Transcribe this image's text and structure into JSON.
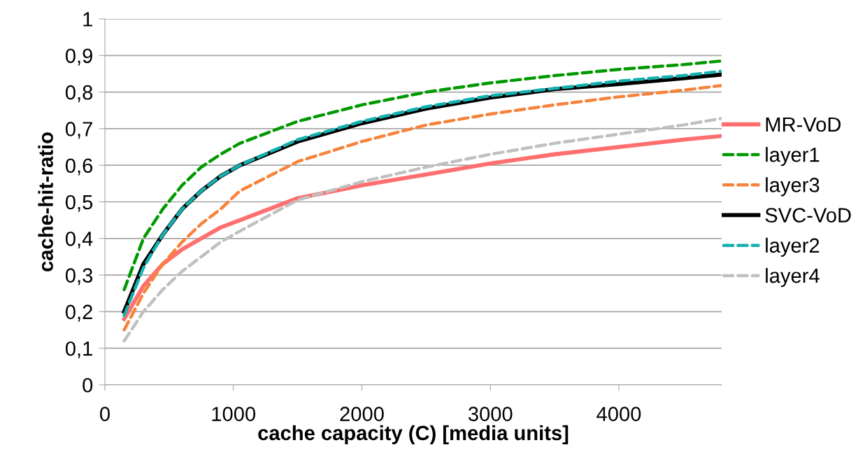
{
  "chart_data": {
    "type": "line",
    "xlabel": "cache capacity (C) [media units]",
    "ylabel": "cache-hit-ratio",
    "x": [
      150,
      300,
      450,
      600,
      750,
      900,
      1050,
      1500,
      2000,
      2500,
      3000,
      3500,
      4000,
      4500,
      4800
    ],
    "xlim": [
      0,
      4800
    ],
    "xticks": [
      0,
      1000,
      2000,
      3000,
      4000
    ],
    "ylim": [
      0,
      1
    ],
    "yticks": [
      0,
      {
        "value": 0.1,
        "label": "0,1"
      },
      {
        "value": 0.2,
        "label": "0,2"
      },
      {
        "value": 0.3,
        "label": "0,3"
      },
      {
        "value": 0.4,
        "label": "0,4"
      },
      {
        "value": 0.5,
        "label": "0,5"
      },
      {
        "value": 0.6,
        "label": "0,6"
      },
      {
        "value": 0.7,
        "label": "0,7"
      },
      {
        "value": 0.8,
        "label": "0,8"
      },
      {
        "value": 0.9,
        "label": "0,9"
      },
      1
    ],
    "grid": "y",
    "legend": "right",
    "marker": "none",
    "series": [
      {
        "name": "MR-VoD",
        "color": "#ff6f6f",
        "line_style": "solid",
        "values": [
          0.18,
          0.27,
          0.33,
          0.37,
          0.4,
          0.43,
          0.45,
          0.51,
          0.545,
          0.575,
          0.605,
          0.63,
          0.65,
          0.67,
          0.68
        ]
      },
      {
        "name": "layer1",
        "color": "#009900",
        "line_style": "dashed",
        "values": [
          0.26,
          0.4,
          0.48,
          0.545,
          0.595,
          0.63,
          0.66,
          0.72,
          0.765,
          0.8,
          0.825,
          0.845,
          0.862,
          0.875,
          0.885
        ]
      },
      {
        "name": "layer3",
        "color": "#f7823b",
        "line_style": "dashed",
        "values": [
          0.15,
          0.25,
          0.33,
          0.39,
          0.44,
          0.48,
          0.53,
          0.61,
          0.665,
          0.71,
          0.74,
          0.765,
          0.787,
          0.805,
          0.818
        ]
      },
      {
        "name": "SVC-VoD",
        "color": "#000000",
        "line_style": "solid",
        "values": [
          0.2,
          0.33,
          0.41,
          0.48,
          0.53,
          0.57,
          0.6,
          0.665,
          0.715,
          0.755,
          0.785,
          0.808,
          0.822,
          0.838,
          0.848
        ]
      },
      {
        "name": "layer2",
        "color": "#14b1b1",
        "line_style": "dashed",
        "values": [
          0.19,
          0.32,
          0.41,
          0.48,
          0.53,
          0.57,
          0.6,
          0.67,
          0.72,
          0.76,
          0.79,
          0.81,
          0.83,
          0.845,
          0.857
        ]
      },
      {
        "name": "layer4",
        "color": "#c0c0c0",
        "line_style": "dashed",
        "values": [
          0.12,
          0.2,
          0.26,
          0.31,
          0.35,
          0.39,
          0.42,
          0.505,
          0.555,
          0.595,
          0.63,
          0.66,
          0.685,
          0.71,
          0.728
        ]
      }
    ]
  }
}
